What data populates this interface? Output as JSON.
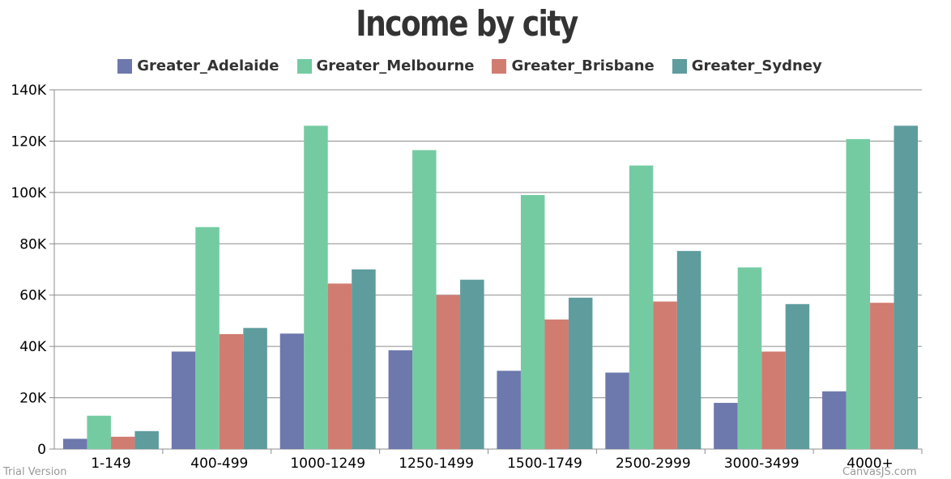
{
  "chart_data": {
    "type": "bar",
    "title": "Income by city",
    "categories": [
      "1-149",
      "400-499",
      "1000-1249",
      "1250-1499",
      "1500-1749",
      "2500-2999",
      "3000-3499",
      "4000+"
    ],
    "series": [
      {
        "name": "Greater_Adelaide",
        "color": "#6D78AD",
        "values": [
          4000,
          38000,
          45000,
          38500,
          30500,
          29800,
          18000,
          22500
        ]
      },
      {
        "name": "Greater_Melbourne",
        "color": "#74CBA2",
        "values": [
          13000,
          86500,
          126000,
          116500,
          99000,
          110500,
          70800,
          120800
        ]
      },
      {
        "name": "Greater_Brisbane",
        "color": "#D17C71",
        "values": [
          4800,
          44800,
          64500,
          60000,
          50500,
          57500,
          38000,
          57000
        ]
      },
      {
        "name": "Greater_Sydney",
        "color": "#5F9C9E",
        "values": [
          7000,
          47200,
          70000,
          66000,
          59000,
          77200,
          56500,
          126000
        ]
      }
    ],
    "ylim": [
      0,
      140000
    ],
    "yticks": [
      0,
      20000,
      40000,
      60000,
      80000,
      100000,
      120000,
      140000
    ],
    "ytick_labels": [
      "0",
      "20K",
      "40K",
      "60K",
      "80K",
      "100K",
      "120K",
      "140K"
    ],
    "grid": true,
    "legend_position": "top-center"
  },
  "watermark": {
    "left": "Trial Version",
    "right": "CanvasJS.com"
  }
}
